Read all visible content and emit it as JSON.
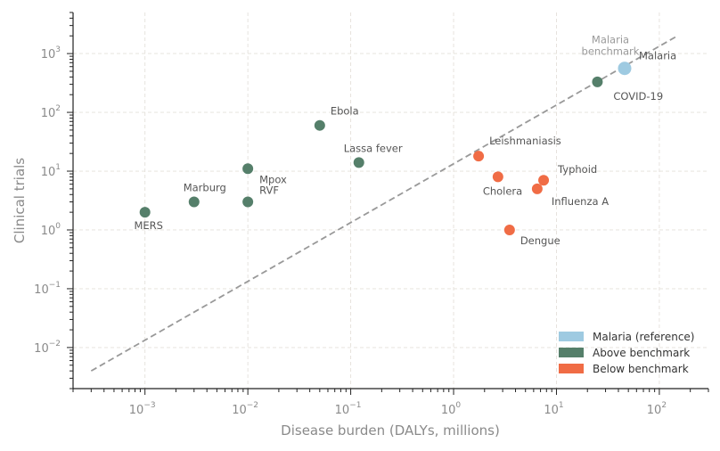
{
  "chart_data": {
    "type": "scatter",
    "xlabel": "Disease burden (DALYs, millions)",
    "ylabel": "Clinical trials",
    "xscale": "log",
    "yscale": "log",
    "xlim": [
      0.0002,
      300
    ],
    "ylim": [
      0.002,
      5000
    ],
    "x_ticks": [
      {
        "base": "10",
        "exp": "−3",
        "value": 0.001
      },
      {
        "base": "10",
        "exp": "−2",
        "value": 0.01
      },
      {
        "base": "10",
        "exp": "−1",
        "value": 0.1
      },
      {
        "base": "10",
        "exp": "0",
        "value": 1
      },
      {
        "base": "10",
        "exp": "1",
        "value": 10
      },
      {
        "base": "10",
        "exp": "2",
        "value": 100
      }
    ],
    "y_ticks": [
      {
        "base": "10",
        "exp": "−2",
        "value": 0.01
      },
      {
        "base": "10",
        "exp": "−1",
        "value": 0.1
      },
      {
        "base": "10",
        "exp": "0",
        "value": 1
      },
      {
        "base": "10",
        "exp": "1",
        "value": 10
      },
      {
        "base": "10",
        "exp": "2",
        "value": 100
      },
      {
        "base": "10",
        "exp": "3",
        "value": 1000
      }
    ],
    "grid": true,
    "legend_position": "bottom-right",
    "benchmark_line": {
      "label": "Malaria benchmark",
      "style": "dashed",
      "color": "#999999",
      "x": [
        0.0003,
        150
      ],
      "y": [
        0.004,
        2000
      ]
    },
    "series": [
      {
        "name": "Malaria (reference)",
        "color": "#9ecae1",
        "points": [
          {
            "label": "Malaria",
            "x": 46,
            "y": 560
          }
        ]
      },
      {
        "name": "Above benchmark",
        "color": "#557f6a",
        "points": [
          {
            "label": "MERS",
            "x": 0.001,
            "y": 2
          },
          {
            "label": "Marburg",
            "x": 0.003,
            "y": 3
          },
          {
            "label": "Mpox",
            "x": 0.01,
            "y": 11
          },
          {
            "label": "RVF",
            "x": 0.01,
            "y": 3
          },
          {
            "label": "Ebola",
            "x": 0.05,
            "y": 60
          },
          {
            "label": "Lassa fever",
            "x": 0.12,
            "y": 14
          },
          {
            "label": "COVID-19",
            "x": 25,
            "y": 330
          }
        ]
      },
      {
        "name": "Below benchmark",
        "color": "#f06c45",
        "points": [
          {
            "label": "Leishmaniasis",
            "x": 1.75,
            "y": 18
          },
          {
            "label": "Cholera",
            "x": 2.7,
            "y": 8
          },
          {
            "label": "Typhoid",
            "x": 7.5,
            "y": 7
          },
          {
            "label": "Influenza A",
            "x": 6.5,
            "y": 5
          },
          {
            "label": "Dengue",
            "x": 3.5,
            "y": 1
          }
        ]
      }
    ]
  }
}
